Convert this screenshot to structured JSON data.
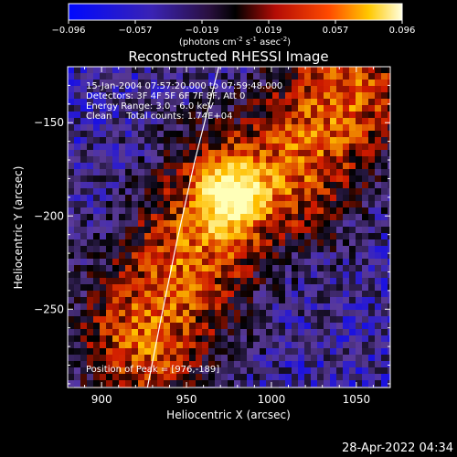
{
  "colorbar": {
    "ticks": [
      "-0.096",
      "-0.057",
      "-0.019",
      "0.019",
      "0.057",
      "0.096"
    ],
    "units": "(photons cm",
    "units_exp1": "-2",
    "units_mid": " s",
    "units_exp2": "-1",
    "units_mid2": " asec",
    "units_exp3": "-2",
    "units_end": ")"
  },
  "title": "Reconstructed RHESSI Image",
  "info": {
    "line1": "15-Jan-2004 07:57:20.000 to 07:59:48.000",
    "line2": "Detectors: 3F 4F 5F 6F 7F 8F, Att 0",
    "line3": "Energy Range: 3.0 - 6.0 keV",
    "line4": "Clean     Total counts: 1.74E+04",
    "peak": "Position of Peak = [976,-189]"
  },
  "timestamp": "28-Apr-2022 04:34",
  "chart_data": {
    "type": "heatmap",
    "title": "Reconstructed RHESSI Image",
    "xlabel": "Heliocentric X (arcsec)",
    "ylabel": "Heliocentric Y (arcsec)",
    "xlim": [
      880,
      1070
    ],
    "ylim": [
      -292,
      -120
    ],
    "x_ticks": [
      900,
      950,
      1000,
      1050
    ],
    "y_ticks": [
      -150,
      -200,
      -250
    ],
    "x_tick_labels": [
      "900",
      "950",
      "1000",
      "1050"
    ],
    "y_tick_labels": [
      "−150",
      "−200",
      "−250"
    ],
    "colorbar_range": [
      -0.096,
      0.096
    ],
    "peak_position": [
      976,
      -189
    ],
    "limb_curve": [
      [
        969,
        -120
      ],
      [
        955,
        -170
      ],
      [
        944,
        -215
      ],
      [
        935,
        -255
      ],
      [
        927,
        -292
      ]
    ],
    "emission_ridge": [
      [
        925,
        -265
      ],
      [
        950,
        -225
      ],
      [
        976,
        -189
      ],
      [
        1010,
        -175
      ],
      [
        1045,
        -135
      ]
    ],
    "colormap": [
      "#0000ff",
      "#5a3a9a",
      "#000000",
      "#d11a00",
      "#ffbf00",
      "#ffffb8"
    ]
  }
}
